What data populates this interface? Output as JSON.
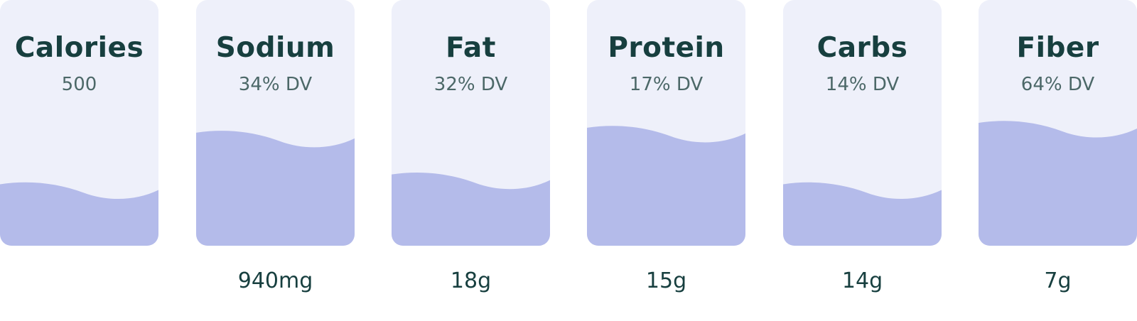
{
  "colors": {
    "card_background": "#eef0fa",
    "fill": "#b4bbea",
    "title_text": "#173f3f",
    "subtitle_text": "#4c6868"
  },
  "nutrients": [
    {
      "name": "Calories",
      "daily_value": "500",
      "amount": "",
      "fill_fraction": 0.25
    },
    {
      "name": "Sodium",
      "daily_value": "34% DV",
      "amount": "940mg",
      "fill_fraction": 0.46
    },
    {
      "name": "Fat",
      "daily_value": "32% DV",
      "amount": "18g",
      "fill_fraction": 0.29
    },
    {
      "name": "Protein",
      "daily_value": "17% DV",
      "amount": "15g",
      "fill_fraction": 0.48
    },
    {
      "name": "Carbs",
      "daily_value": "14% DV",
      "amount": "14g",
      "fill_fraction": 0.25
    },
    {
      "name": "Fiber",
      "daily_value": "64% DV",
      "amount": "7g",
      "fill_fraction": 0.5
    }
  ]
}
